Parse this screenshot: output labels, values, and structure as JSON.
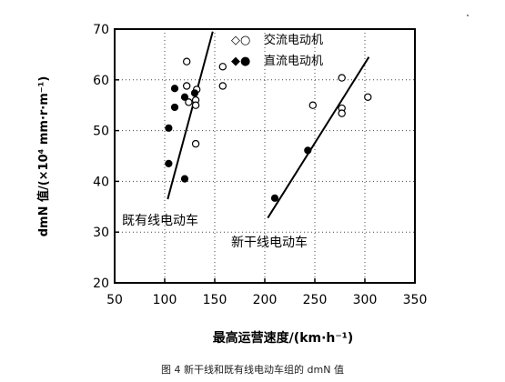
{
  "chart_data": {
    "type": "scatter",
    "xlabel": "最高运营速度/(km·h⁻¹)",
    "ylabel": "dmN 值/(×10⁴ mm·r·m⁻¹)",
    "xlim": [
      50,
      350
    ],
    "ylim": [
      20,
      70
    ],
    "xticks": [
      "50",
      "100",
      "150",
      "200",
      "250",
      "300",
      "350"
    ],
    "yticks": [
      "20",
      "30",
      "40",
      "50",
      "60",
      "70"
    ],
    "grid": "dotted",
    "legend_position": "top-right",
    "series": [
      {
        "name": "交流电动机",
        "marker": "open",
        "points": [
          {
            "x": 122,
            "y": 63.6
          },
          {
            "x": 122,
            "y": 58.8
          },
          {
            "x": 124,
            "y": 55.6
          },
          {
            "x": 132,
            "y": 58.1
          },
          {
            "x": 131,
            "y": 56.0
          },
          {
            "x": 131,
            "y": 55.0
          },
          {
            "x": 131,
            "y": 47.4
          },
          {
            "x": 158,
            "y": 62.6
          },
          {
            "x": 158,
            "y": 58.8
          },
          {
            "x": 248,
            "y": 55.0
          },
          {
            "x": 277,
            "y": 60.4
          },
          {
            "x": 277,
            "y": 54.4
          },
          {
            "x": 277,
            "y": 53.4
          },
          {
            "x": 303,
            "y": 56.6
          }
        ]
      },
      {
        "name": "直流电动机",
        "marker": "filled",
        "points": [
          {
            "x": 104,
            "y": 50.5
          },
          {
            "x": 104,
            "y": 43.5
          },
          {
            "x": 110,
            "y": 58.3
          },
          {
            "x": 110,
            "y": 54.6
          },
          {
            "x": 120,
            "y": 56.6
          },
          {
            "x": 120,
            "y": 40.5
          },
          {
            "x": 130,
            "y": 57.4
          },
          {
            "x": 210,
            "y": 36.7
          },
          {
            "x": 243,
            "y": 46.1
          }
        ]
      }
    ],
    "trend_lines": [
      {
        "label": "既有线电动车",
        "from": {
          "x": 103,
          "y": 36.5
        },
        "to": {
          "x": 148,
          "y": 69.5
        }
      },
      {
        "label": "新干线电动车",
        "from": {
          "x": 203,
          "y": 32.8
        },
        "to": {
          "x": 304,
          "y": 64.5
        }
      }
    ],
    "legend": [
      {
        "label": "交流电动机",
        "symbols": "◇○"
      },
      {
        "label": "直流电动机",
        "symbols": "◆●"
      }
    ]
  },
  "caption": "图 4  新干线和既有线电动车组的 dmN 值"
}
